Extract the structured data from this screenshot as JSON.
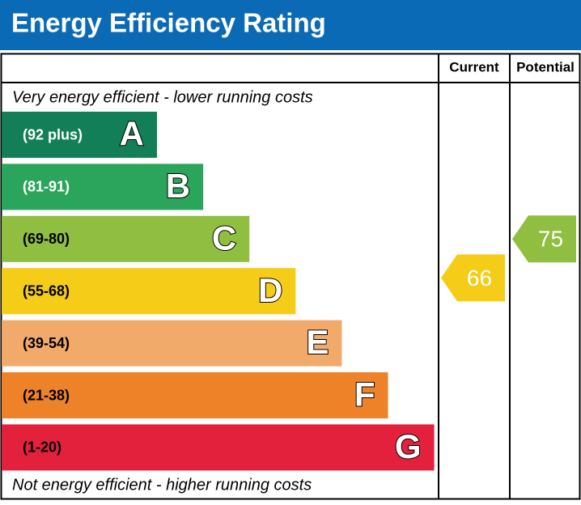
{
  "header": {
    "title": "Energy Efficiency Rating"
  },
  "columns": {
    "current": "Current",
    "potential": "Potential"
  },
  "top_note": "Very energy efficient - lower running costs",
  "bottom_note": "Not energy efficient - higher running costs",
  "bands": [
    {
      "letter": "A",
      "range": "(92 plus)",
      "color": "#137f58"
    },
    {
      "letter": "B",
      "range": "(81-91)",
      "color": "#2ba55b"
    },
    {
      "letter": "C",
      "range": "(69-80)",
      "color": "#8fbe40"
    },
    {
      "letter": "D",
      "range": "(55-68)",
      "color": "#f5cc18"
    },
    {
      "letter": "E",
      "range": "(39-54)",
      "color": "#f2aa6b"
    },
    {
      "letter": "F",
      "range": "(21-38)",
      "color": "#ee8229"
    },
    {
      "letter": "G",
      "range": "(1-20)",
      "color": "#e3213d"
    }
  ],
  "current": 66,
  "potential": 75
}
